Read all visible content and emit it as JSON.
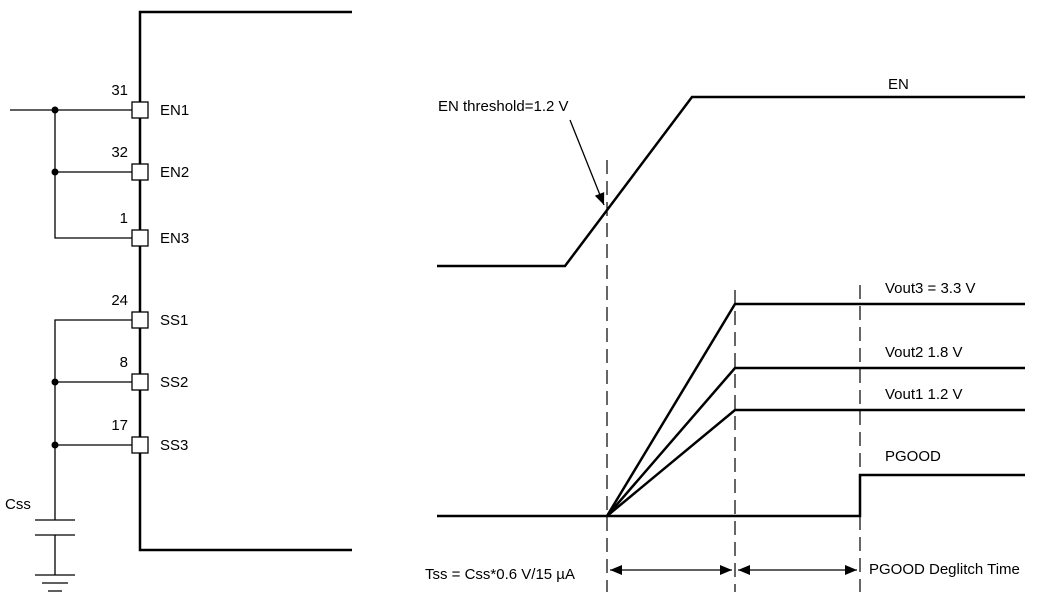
{
  "pins": [
    {
      "number": "31",
      "name": "EN1"
    },
    {
      "number": "32",
      "name": "EN2"
    },
    {
      "number": "1",
      "name": "EN3"
    },
    {
      "number": "24",
      "name": "SS1"
    },
    {
      "number": "8",
      "name": "SS2"
    },
    {
      "number": "17",
      "name": "SS3"
    }
  ],
  "capacitor_label": "Css",
  "threshold_label": "EN threshold=1.2 V",
  "signals": {
    "en": "EN",
    "vout3": "Vout3 = 3.3 V",
    "vout2": "Vout2 1.8 V",
    "vout1": "Vout1 1.2 V",
    "pgood": "PGOOD"
  },
  "intervals": {
    "tss": "Tss = Css*0.6 V/15 µA",
    "deglitch": "PGOOD Deglitch Time"
  }
}
